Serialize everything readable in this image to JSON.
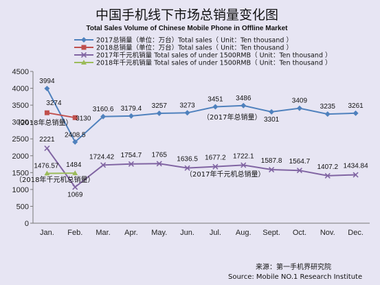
{
  "chart_data": {
    "type": "line",
    "title": "中国手机线下市场总销量变化图",
    "subtitle": "Total Sales Volume of Chinese Mobile Phone in Offline Market",
    "categories": [
      "Jan.",
      "Feb.",
      "Mar.",
      "Apr.",
      "May.",
      "Jun.",
      "Jul.",
      "Aug.",
      "Sept.",
      "Oct.",
      "Nov.",
      "Dec."
    ],
    "ylim": [
      0,
      4500
    ],
    "yticks": [
      0,
      500,
      1000,
      1500,
      2000,
      2500,
      3000,
      3500,
      4000,
      4500
    ],
    "grid": false,
    "legend_position": "top",
    "series": [
      {
        "name": "2017总销量（单位：万台）Total sales（ Unit：Ten thousand ）",
        "color": "#4f81bd",
        "marker": "diamond",
        "values": [
          3994,
          2408.5,
          3160.6,
          3179.4,
          3257,
          3273,
          3451,
          3486,
          3301,
          3409,
          3235,
          3261
        ],
        "labels": [
          "3994",
          "2408.5",
          "3160.6",
          "3179.4",
          "3257",
          "3273",
          "3451",
          "3486",
          "3301",
          "3409",
          "3235",
          "3261"
        ]
      },
      {
        "name": "2018总销量（单位：万台）Total sales（ Unit：Ten thousand ）",
        "color": "#c0504d",
        "marker": "square",
        "values": [
          3274,
          3130,
          null,
          null,
          null,
          null,
          null,
          null,
          null,
          null,
          null,
          null
        ],
        "labels": [
          "3274",
          "3130",
          null,
          null,
          null,
          null,
          null,
          null,
          null,
          null,
          null,
          null
        ]
      },
      {
        "name": "2017年千元机销量 Total sales of under 1500RMB（ Unit：Ten thousand ）",
        "color": "#8064a2",
        "marker": "x",
        "values": [
          2221,
          1069,
          1724.42,
          1754.7,
          1765,
          1636.5,
          1677.2,
          1722.1,
          1587.8,
          1564.7,
          1407.2,
          1434.84
        ],
        "labels": [
          "2221",
          "1069",
          "1724.42",
          "1754.7",
          "1765",
          "1636.5",
          "1677.2",
          "1722.1",
          "1587.8",
          "1564.7",
          "1407.2",
          "1434.84"
        ]
      },
      {
        "name": "2018年千元机销量 Total sales of under 1500RMB（ Unit：Ten thousand ）",
        "color": "#9bbb59",
        "marker": "triangle",
        "values": [
          1476.57,
          1484,
          null,
          null,
          null,
          null,
          null,
          null,
          null,
          null,
          null,
          null
        ],
        "labels": [
          "1476.57",
          "1484",
          null,
          null,
          null,
          null,
          null,
          null,
          null,
          null,
          null,
          null
        ]
      }
    ],
    "annotations": [
      "（2018年总销量）",
      "（2017年总销量）",
      "（2018年千元机总销量）",
      "（2017年千元机总销量）"
    ]
  },
  "source_cn": "来源：第一手机界研究院",
  "source_en": "Source: Mobile NO.1 Research Institute"
}
